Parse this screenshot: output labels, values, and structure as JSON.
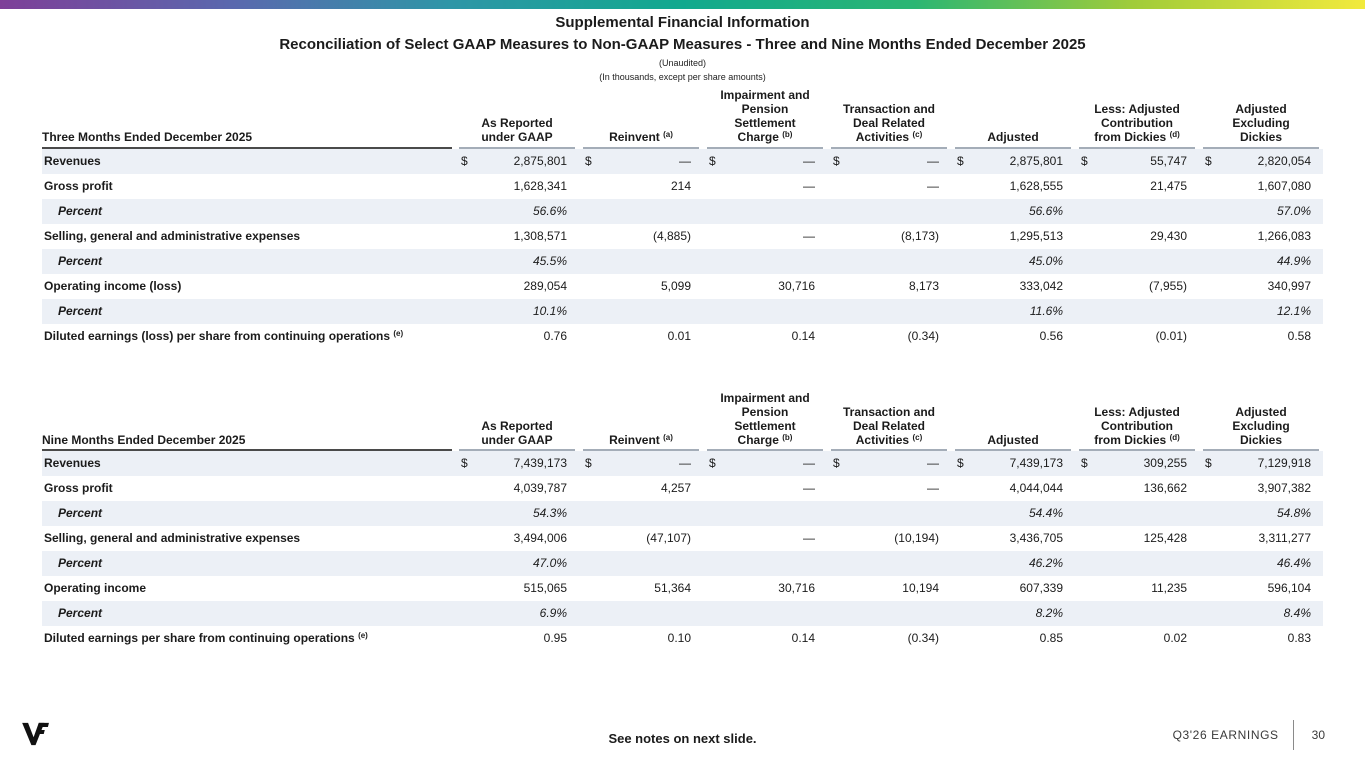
{
  "slide": {
    "title": "Supplemental Financial Information",
    "subtitle": "Reconciliation of Select GAAP Measures to Non-GAAP Measures - Three and Nine Months Ended December 2025",
    "unaudited": "(Unaudited)",
    "units_note": "(In thousands, except per share amounts)"
  },
  "colors": {
    "accent_gradient": [
      "#7e3f98",
      "#5a68ae",
      "#2e96a7",
      "#11a98e",
      "#2bb673",
      "#a0cc3a",
      "#f2ea3c"
    ],
    "row_shade": "#ecf0f6",
    "header_underline_label": "#4a4a4a",
    "header_underline_numeric": "#a4adb8"
  },
  "columns": [
    {
      "lines": [
        "As Reported",
        "under GAAP"
      ],
      "sup": ""
    },
    {
      "lines": [
        "Reinvent"
      ],
      "sup": "(a)"
    },
    {
      "lines": [
        "Impairment and",
        "Pension",
        "Settlement",
        "Charge"
      ],
      "sup": "(b)"
    },
    {
      "lines": [
        "Transaction and",
        "Deal Related",
        "Activities"
      ],
      "sup": "(c)"
    },
    {
      "lines": [
        "Adjusted"
      ],
      "sup": ""
    },
    {
      "lines": [
        "Less: Adjusted",
        "Contribution",
        "from Dickies"
      ],
      "sup": "(d)"
    },
    {
      "lines": [
        "Adjusted",
        "Excluding",
        "Dickies"
      ],
      "sup": ""
    }
  ],
  "tables": [
    {
      "title": "Three Months Ended December 2025",
      "rows": [
        {
          "label": "Revenues",
          "label_sup": "",
          "percent": false,
          "cells": [
            [
              "$",
              "2,875,801"
            ],
            [
              "$",
              "—"
            ],
            [
              "$",
              "—"
            ],
            [
              "$",
              "—"
            ],
            [
              "$",
              "2,875,801"
            ],
            [
              "$",
              "55,747"
            ],
            [
              "$",
              "2,820,054"
            ]
          ]
        },
        {
          "label": "Gross profit",
          "label_sup": "",
          "percent": false,
          "cells": [
            [
              "",
              "1,628,341"
            ],
            [
              "",
              "214"
            ],
            [
              "",
              "—"
            ],
            [
              "",
              "—"
            ],
            [
              "",
              "1,628,555"
            ],
            [
              "",
              "21,475"
            ],
            [
              "",
              "1,607,080"
            ]
          ]
        },
        {
          "label": "Percent",
          "label_sup": "",
          "percent": true,
          "cells": [
            [
              "",
              "56.6%"
            ],
            [
              "",
              ""
            ],
            [
              "",
              ""
            ],
            [
              "",
              ""
            ],
            [
              "",
              "56.6%"
            ],
            [
              "",
              ""
            ],
            [
              "",
              "57.0%"
            ]
          ]
        },
        {
          "label": "Selling, general and administrative expenses",
          "label_sup": "",
          "percent": false,
          "cells": [
            [
              "",
              "1,308,571"
            ],
            [
              "",
              "(4,885)"
            ],
            [
              "",
              "—"
            ],
            [
              "",
              "(8,173)"
            ],
            [
              "",
              "1,295,513"
            ],
            [
              "",
              "29,430"
            ],
            [
              "",
              "1,266,083"
            ]
          ]
        },
        {
          "label": "Percent",
          "label_sup": "",
          "percent": true,
          "cells": [
            [
              "",
              "45.5%"
            ],
            [
              "",
              ""
            ],
            [
              "",
              ""
            ],
            [
              "",
              ""
            ],
            [
              "",
              "45.0%"
            ],
            [
              "",
              ""
            ],
            [
              "",
              "44.9%"
            ]
          ]
        },
        {
          "label": "Operating income (loss)",
          "label_sup": "",
          "percent": false,
          "cells": [
            [
              "",
              "289,054"
            ],
            [
              "",
              "5,099"
            ],
            [
              "",
              "30,716"
            ],
            [
              "",
              "8,173"
            ],
            [
              "",
              "333,042"
            ],
            [
              "",
              "(7,955)"
            ],
            [
              "",
              "340,997"
            ]
          ]
        },
        {
          "label": "Percent",
          "label_sup": "",
          "percent": true,
          "cells": [
            [
              "",
              "10.1%"
            ],
            [
              "",
              ""
            ],
            [
              "",
              ""
            ],
            [
              "",
              ""
            ],
            [
              "",
              "11.6%"
            ],
            [
              "",
              ""
            ],
            [
              "",
              "12.1%"
            ]
          ]
        },
        {
          "label": "Diluted earnings (loss) per share from continuing operations",
          "label_sup": "(e)",
          "percent": false,
          "cells": [
            [
              "",
              "0.76"
            ],
            [
              "",
              "0.01"
            ],
            [
              "",
              "0.14"
            ],
            [
              "",
              "(0.34)"
            ],
            [
              "",
              "0.56"
            ],
            [
              "",
              "(0.01)"
            ],
            [
              "",
              "0.58"
            ]
          ]
        }
      ]
    },
    {
      "title": "Nine Months Ended December 2025",
      "rows": [
        {
          "label": "Revenues",
          "label_sup": "",
          "percent": false,
          "cells": [
            [
              "$",
              "7,439,173"
            ],
            [
              "$",
              "—"
            ],
            [
              "$",
              "—"
            ],
            [
              "$",
              "—"
            ],
            [
              "$",
              "7,439,173"
            ],
            [
              "$",
              "309,255"
            ],
            [
              "$",
              "7,129,918"
            ]
          ]
        },
        {
          "label": "Gross profit",
          "label_sup": "",
          "percent": false,
          "cells": [
            [
              "",
              "4,039,787"
            ],
            [
              "",
              "4,257"
            ],
            [
              "",
              "—"
            ],
            [
              "",
              "—"
            ],
            [
              "",
              "4,044,044"
            ],
            [
              "",
              "136,662"
            ],
            [
              "",
              "3,907,382"
            ]
          ]
        },
        {
          "label": "Percent",
          "label_sup": "",
          "percent": true,
          "cells": [
            [
              "",
              "54.3%"
            ],
            [
              "",
              ""
            ],
            [
              "",
              ""
            ],
            [
              "",
              ""
            ],
            [
              "",
              "54.4%"
            ],
            [
              "",
              ""
            ],
            [
              "",
              "54.8%"
            ]
          ]
        },
        {
          "label": "Selling, general and administrative expenses",
          "label_sup": "",
          "percent": false,
          "cells": [
            [
              "",
              "3,494,006"
            ],
            [
              "",
              "(47,107)"
            ],
            [
              "",
              "—"
            ],
            [
              "",
              "(10,194)"
            ],
            [
              "",
              "3,436,705"
            ],
            [
              "",
              "125,428"
            ],
            [
              "",
              "3,311,277"
            ]
          ]
        },
        {
          "label": "Percent",
          "label_sup": "",
          "percent": true,
          "cells": [
            [
              "",
              "47.0%"
            ],
            [
              "",
              ""
            ],
            [
              "",
              ""
            ],
            [
              "",
              ""
            ],
            [
              "",
              "46.2%"
            ],
            [
              "",
              ""
            ],
            [
              "",
              "46.4%"
            ]
          ]
        },
        {
          "label": "Operating income",
          "label_sup": "",
          "percent": false,
          "cells": [
            [
              "",
              "515,065"
            ],
            [
              "",
              "51,364"
            ],
            [
              "",
              "30,716"
            ],
            [
              "",
              "10,194"
            ],
            [
              "",
              "607,339"
            ],
            [
              "",
              "11,235"
            ],
            [
              "",
              "596,104"
            ]
          ]
        },
        {
          "label": "Percent",
          "label_sup": "",
          "percent": true,
          "cells": [
            [
              "",
              "6.9%"
            ],
            [
              "",
              ""
            ],
            [
              "",
              ""
            ],
            [
              "",
              ""
            ],
            [
              "",
              "8.2%"
            ],
            [
              "",
              ""
            ],
            [
              "",
              "8.4%"
            ]
          ]
        },
        {
          "label": "Diluted earnings per share from continuing operations",
          "label_sup": "(e)",
          "percent": false,
          "cells": [
            [
              "",
              "0.95"
            ],
            [
              "",
              "0.10"
            ],
            [
              "",
              "0.14"
            ],
            [
              "",
              "(0.34)"
            ],
            [
              "",
              "0.85"
            ],
            [
              "",
              "0.02"
            ],
            [
              "",
              "0.83"
            ]
          ]
        }
      ]
    }
  ],
  "footer": {
    "see_notes": "See notes on next slide.",
    "earnings_label": "Q3'26 EARNINGS",
    "page_number": "30"
  }
}
